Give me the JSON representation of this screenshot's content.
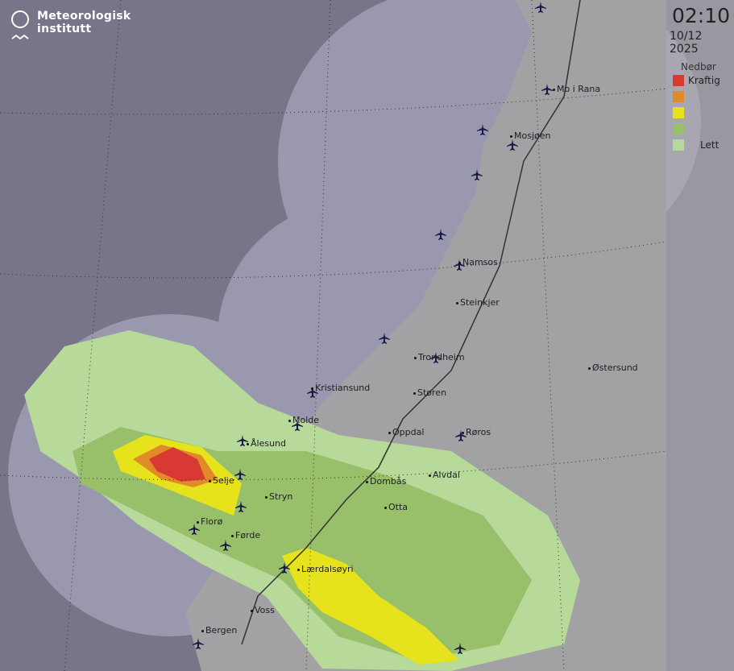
{
  "brand": {
    "name_line1": "Meteorologisk",
    "name_line2": "institutt"
  },
  "timestamp": {
    "time": "02:10",
    "date": "10/12 2025"
  },
  "legend": {
    "title": "Nedbør",
    "items": [
      {
        "color": "#d83a33",
        "label": "Kraftig"
      },
      {
        "color": "#e08a2a",
        "label": ""
      },
      {
        "color": "#e6e21c",
        "label": ""
      },
      {
        "color": "#98c06a",
        "label": ""
      },
      {
        "color": "#b7d99a",
        "label": "Lett"
      }
    ]
  },
  "colors": {
    "background": "#777587",
    "radar_coverage": "#9a98ae",
    "land": "#9a9a9a",
    "water_lakes": "#8a88aa",
    "airport_icon": "#1a1a4a"
  },
  "places": [
    "Mo i Rana",
    "Mosjøen",
    "Namsos",
    "Steinkjer",
    "Trondheim",
    "Østersund",
    "Kristiansund",
    "Støren",
    "Molde",
    "Ålesund",
    "Oppdal",
    "Røros",
    "Selje",
    "Alvdal",
    "Dombås",
    "Stryn",
    "Otta",
    "Florø",
    "Førde",
    "Lærdalsøyri",
    "Voss",
    "Bergen"
  ],
  "airport_icon": "airplane-icon"
}
